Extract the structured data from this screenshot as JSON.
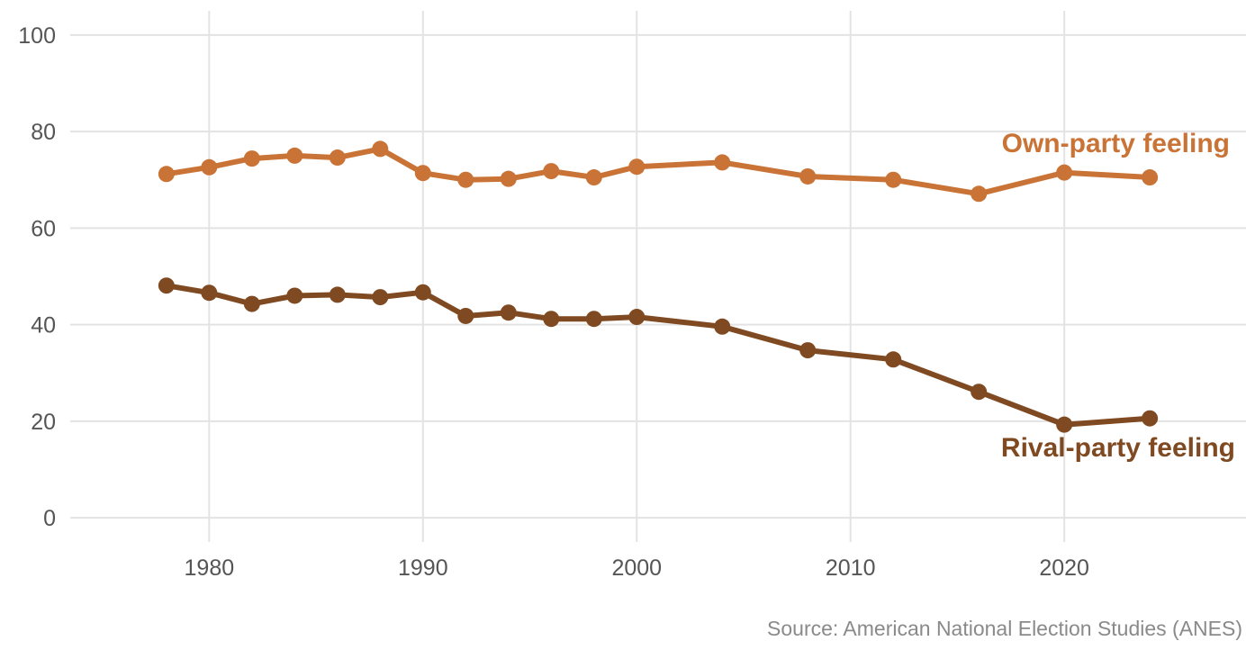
{
  "chart_data": {
    "type": "line",
    "title": "",
    "xlabel": "",
    "ylabel": "",
    "xlim": [
      1973.5,
      2028.5
    ],
    "ylim": [
      -5,
      105
    ],
    "x_ticks": [
      1980,
      1990,
      2000,
      2010,
      2020
    ],
    "y_ticks": [
      0,
      20,
      40,
      60,
      80,
      100
    ],
    "grid": true,
    "legend": "direct-labels",
    "x": [
      1978,
      1980,
      1982,
      1984,
      1986,
      1988,
      1990,
      1992,
      1994,
      1996,
      1998,
      2000,
      2004,
      2008,
      2012,
      2016,
      2020,
      2024
    ],
    "series": [
      {
        "name": "Own-party feeling",
        "color": "#c97436",
        "values": [
          71.2,
          72.6,
          74.4,
          75.0,
          74.6,
          76.4,
          71.4,
          70.0,
          70.2,
          71.8,
          70.5,
          72.7,
          73.6,
          70.7,
          70.0,
          67.1,
          71.5,
          70.5
        ]
      },
      {
        "name": "Rival-party feeling",
        "color": "#7f4a21",
        "values": [
          48.1,
          46.6,
          44.3,
          46.0,
          46.2,
          45.7,
          46.7,
          41.8,
          42.5,
          41.2,
          41.2,
          41.6,
          39.6,
          34.7,
          32.8,
          26.1,
          19.3,
          20.6
        ]
      }
    ],
    "source": "Source: American National Election Studies (ANES)"
  }
}
